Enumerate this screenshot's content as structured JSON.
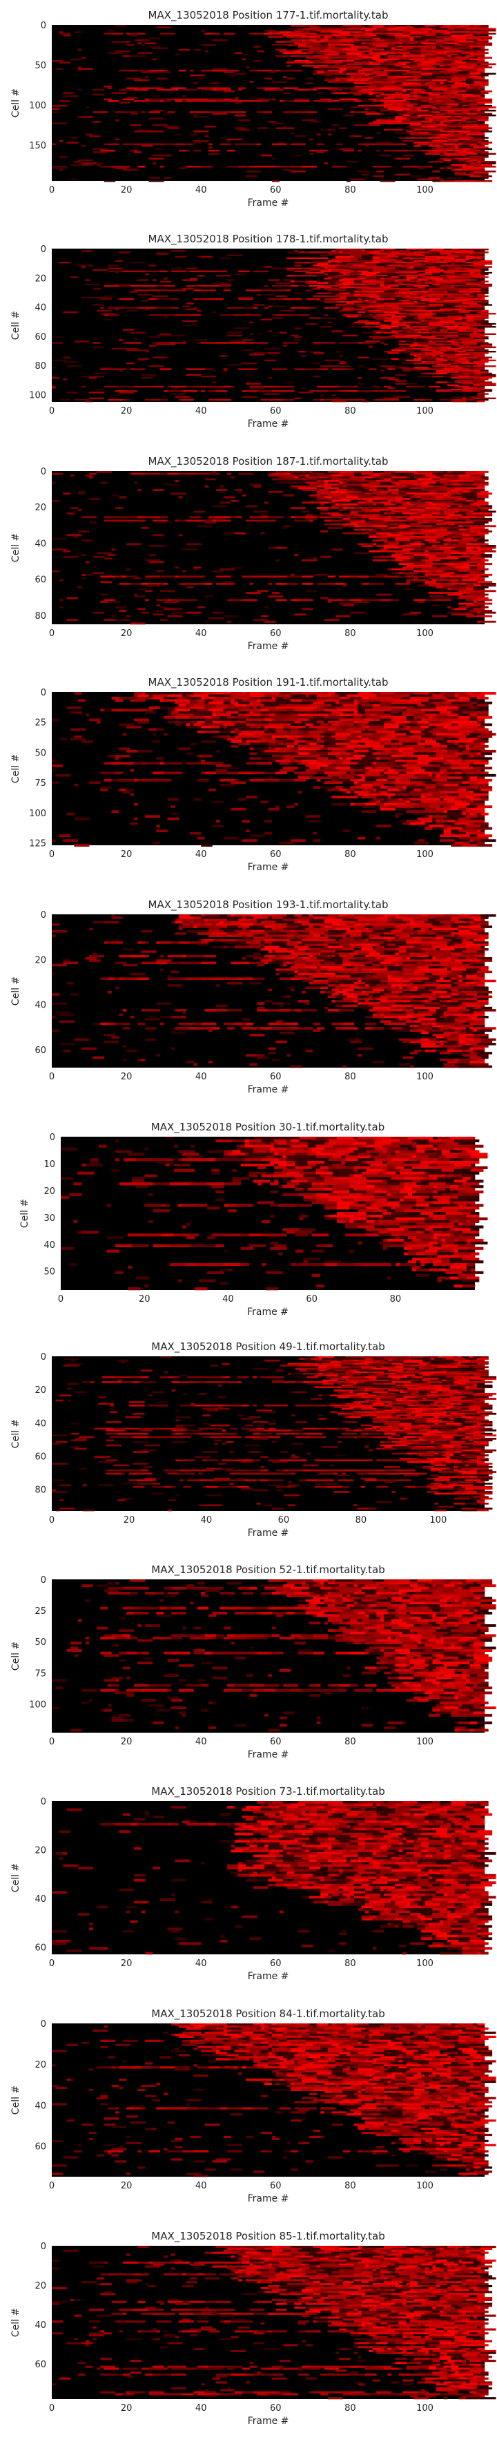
{
  "chart_data": [
    {
      "type": "heatmap",
      "title": "MAX_13052018 Position 177-1.tif.mortality.tab",
      "xlabel": "Frame #",
      "ylabel": "Cell #",
      "xlim": [
        0,
        116
      ],
      "ylim": [
        0,
        195
      ],
      "xticks": [
        "0",
        "20",
        "40",
        "60",
        "80",
        "100"
      ],
      "yticks": [
        "0",
        "50",
        "100",
        "150"
      ],
      "colormap": [
        "#000000",
        "#ff0000"
      ],
      "front_start": [
        60,
        0.1
      ],
      "front_end": [
        112,
        1.0
      ]
    },
    {
      "type": "heatmap",
      "title": "MAX_13052018 Position 178-1.tif.mortality.tab",
      "xlabel": "Frame #",
      "ylabel": "Cell #",
      "xlim": [
        0,
        116
      ],
      "ylim": [
        0,
        105
      ],
      "xticks": [
        "0",
        "20",
        "40",
        "60",
        "80",
        "100"
      ],
      "yticks": [
        "0",
        "20",
        "40",
        "60",
        "80",
        "100"
      ],
      "colormap": [
        "#000000",
        "#ff0000"
      ],
      "front_start": [
        68,
        0.2
      ],
      "front_end": [
        112,
        1.0
      ]
    },
    {
      "type": "heatmap",
      "title": "MAX_13052018 Position 187-1.tif.mortality.tab",
      "xlabel": "Frame #",
      "ylabel": "Cell #",
      "xlim": [
        0,
        116
      ],
      "ylim": [
        0,
        85
      ],
      "xticks": [
        "0",
        "20",
        "40",
        "60",
        "80",
        "100"
      ],
      "yticks": [
        "0",
        "20",
        "40",
        "60",
        "80"
      ],
      "colormap": [
        "#000000",
        "#ff0000"
      ],
      "front_start": [
        62,
        0.05
      ],
      "front_end": [
        114,
        1.0
      ]
    },
    {
      "type": "heatmap",
      "title": "MAX_13052018 Position 191-1.tif.mortality.tab",
      "xlabel": "Frame #",
      "ylabel": "Cell #",
      "xlim": [
        0,
        116
      ],
      "ylim": [
        0,
        127
      ],
      "xticks": [
        "0",
        "20",
        "40",
        "60",
        "80",
        "100"
      ],
      "yticks": [
        "0",
        "25",
        "50",
        "75",
        "100",
        "125"
      ],
      "colormap": [
        "#000000",
        "#ff0000"
      ],
      "front_start": [
        20,
        0.0
      ],
      "front_end": [
        110,
        1.0
      ]
    },
    {
      "type": "heatmap",
      "title": "MAX_13052018 Position 193-1.tif.mortality.tab",
      "xlabel": "Frame #",
      "ylabel": "Cell #",
      "xlim": [
        0,
        116
      ],
      "ylim": [
        0,
        68
      ],
      "xticks": [
        "0",
        "20",
        "40",
        "60",
        "80",
        "100"
      ],
      "yticks": [
        "0",
        "20",
        "40",
        "60"
      ],
      "colormap": [
        "#000000",
        "#ff0000"
      ],
      "front_start": [
        35,
        0.05
      ],
      "front_end": [
        112,
        1.0
      ]
    },
    {
      "type": "heatmap",
      "title": "MAX_13052018 Position 30-1.tif.mortality.tab",
      "xlabel": "Frame #",
      "ylabel": "Cell #",
      "xlim": [
        0,
        99
      ],
      "ylim": [
        0,
        57
      ],
      "xticks": [
        "0",
        "20",
        "40",
        "60",
        "80"
      ],
      "yticks": [
        "0",
        "10",
        "20",
        "30",
        "40",
        "50"
      ],
      "colormap": [
        "#000000",
        "#ff0000"
      ],
      "front_start": [
        40,
        0.1
      ],
      "front_end": [
        97,
        1.0
      ]
    },
    {
      "type": "heatmap",
      "title": "MAX_13052018 Position 49-1.tif.mortality.tab",
      "xlabel": "Frame #",
      "ylabel": "Cell #",
      "xlim": [
        0,
        112
      ],
      "ylim": [
        0,
        93
      ],
      "xticks": [
        "0",
        "20",
        "40",
        "60",
        "80",
        "100"
      ],
      "yticks": [
        "0",
        "20",
        "40",
        "60",
        "80"
      ],
      "colormap": [
        "#000000",
        "#ff0000"
      ],
      "front_start": [
        62,
        0.05
      ],
      "front_end": [
        110,
        1.0
      ]
    },
    {
      "type": "heatmap",
      "title": "MAX_13052018 Position 52-1.tif.mortality.tab",
      "xlabel": "Frame #",
      "ylabel": "Cell #",
      "xlim": [
        0,
        116
      ],
      "ylim": [
        0,
        123
      ],
      "xticks": [
        "0",
        "20",
        "40",
        "60",
        "80",
        "100"
      ],
      "yticks": [
        "0",
        "25",
        "50",
        "75",
        "100"
      ],
      "colormap": [
        "#000000",
        "#ff0000"
      ],
      "front_start": [
        58,
        0.05
      ],
      "front_end": [
        114,
        1.0
      ]
    },
    {
      "type": "heatmap",
      "title": "MAX_13052018 Position 73-1.tif.mortality.tab",
      "xlabel": "Frame #",
      "ylabel": "Cell #",
      "xlim": [
        0,
        116
      ],
      "ylim": [
        0,
        63
      ],
      "xticks": [
        "0",
        "20",
        "40",
        "60",
        "80",
        "100"
      ],
      "yticks": [
        "0",
        "20",
        "40",
        "60"
      ],
      "colormap": [
        "#000000",
        "#ff0000"
      ],
      "front_start": [
        50,
        0.45
      ],
      "front_end": [
        112,
        1.0
      ]
    },
    {
      "type": "heatmap",
      "title": "MAX_13052018 Position 84-1.tif.mortality.tab",
      "xlabel": "Frame #",
      "ylabel": "Cell #",
      "xlim": [
        0,
        116
      ],
      "ylim": [
        0,
        75
      ],
      "xticks": [
        "0",
        "20",
        "40",
        "60",
        "80",
        "100"
      ],
      "yticks": [
        "0",
        "20",
        "40",
        "60"
      ],
      "colormap": [
        "#000000",
        "#ff0000"
      ],
      "front_start": [
        35,
        0.1
      ],
      "front_end": [
        112,
        1.0
      ]
    },
    {
      "type": "heatmap",
      "title": "MAX_13052018 Position 85-1.tif.mortality.tab",
      "xlabel": "Frame #",
      "ylabel": "Cell #",
      "xlim": [
        0,
        116
      ],
      "ylim": [
        0,
        78
      ],
      "xticks": [
        "0",
        "20",
        "40",
        "60",
        "80",
        "100"
      ],
      "yticks": [
        "0",
        "20",
        "40",
        "60"
      ],
      "colormap": [
        "#000000",
        "#ff0000"
      ],
      "front_start": [
        45,
        0.1
      ],
      "front_end": [
        112,
        1.0
      ]
    }
  ]
}
